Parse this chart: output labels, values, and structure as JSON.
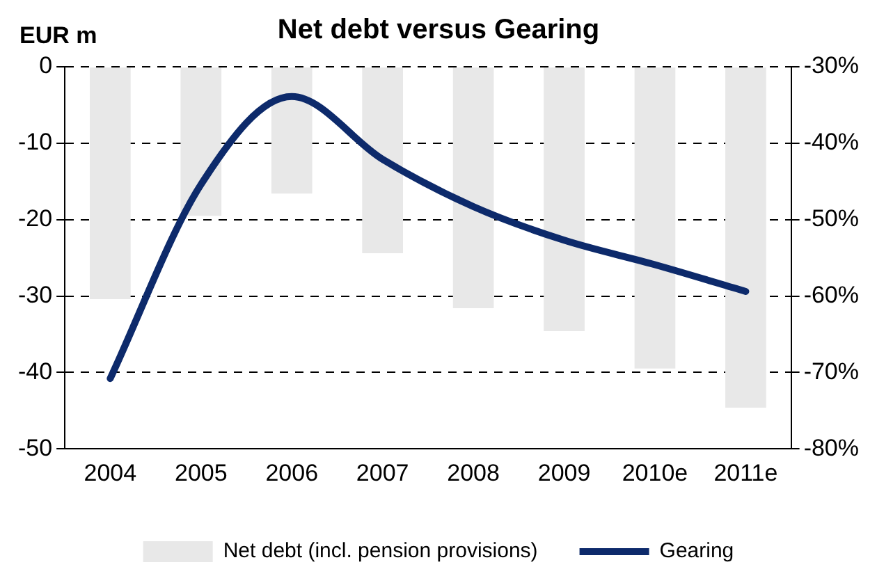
{
  "chart_data": {
    "type": "bar",
    "title": "Net debt versus Gearing",
    "ylabel": "EUR m",
    "categories": [
      "2004",
      "2005",
      "2006",
      "2007",
      "2008",
      "2009",
      "2010e",
      "2011e"
    ],
    "series": [
      {
        "name": "Net debt (incl. pension provisions)",
        "color": "#e8e8e8",
        "values": [
          -30.4,
          -19.5,
          -16.6,
          -24.4,
          -31.6,
          -34.6,
          -39.5,
          -44.6
        ]
      },
      {
        "name": "Gearing",
        "type": "line",
        "axis": "y2",
        "color": "#0d2a6b",
        "values": [
          -70.8,
          -45.4,
          -33.9,
          -42.1,
          -48.3,
          -52.7,
          -55.9,
          -59.4
        ]
      }
    ],
    "ylim": [
      -50,
      0
    ],
    "yticks": [
      0,
      -10,
      -20,
      -30,
      -40,
      -50
    ],
    "y2lim": [
      -80,
      -30
    ],
    "y2ticks": [
      {
        "value": -30,
        "label": "-30%"
      },
      {
        "value": -40,
        "label": "-40%"
      },
      {
        "value": -50,
        "label": "-50%"
      },
      {
        "value": -60,
        "label": "-60%"
      },
      {
        "value": -70,
        "label": "-70%"
      },
      {
        "value": -80,
        "label": "-80%"
      }
    ],
    "grid": "y",
    "legend": "bottom",
    "line_style": "solid",
    "marker": "none"
  }
}
